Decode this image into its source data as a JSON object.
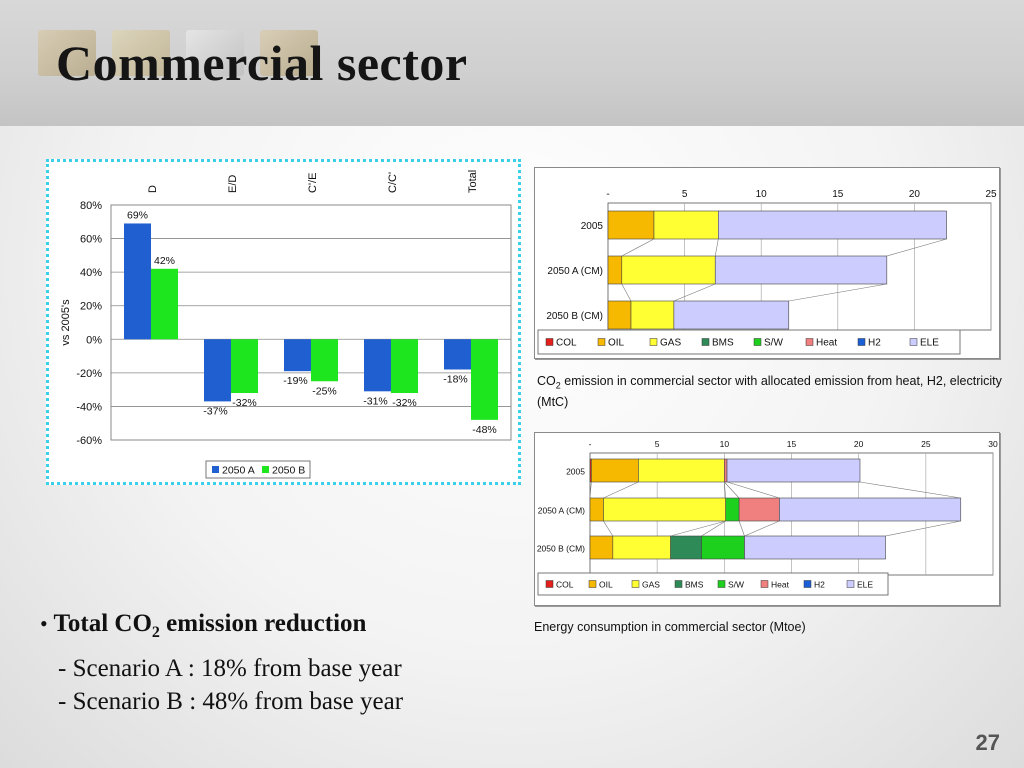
{
  "slide": {
    "title": "Commercial sector",
    "bullet_prefix": "Total CO",
    "bullet_sub": "2",
    "bullet_suffix": " emission reduction",
    "lines": [
      "- Scenario A : 18% from base year",
      "- Scenario B : 48% from base year"
    ],
    "page_number": "27",
    "caption1_prefix": "CO",
    "caption1_sub": "2",
    "caption1_suffix": " emission in commercial sector with allocated emission from heat, H2, electricity (MtC)",
    "caption2": "Energy consumption in commercial sector (Mtoe)"
  },
  "chart_data": [
    {
      "type": "bar",
      "categories": [
        "D",
        "E/D",
        "C'/E",
        "C/C'",
        "Total"
      ],
      "series": [
        {
          "name": "2050 A",
          "values": [
            69,
            -37,
            -19,
            -31,
            -18
          ],
          "labels": [
            "69%",
            "-37%",
            "-19%",
            "-31%",
            "-18%"
          ],
          "color": "#1f5fd0"
        },
        {
          "name": "2050 B",
          "values": [
            42,
            -32,
            -25,
            -32,
            -48
          ],
          "labels": [
            "42%",
            "-32%",
            "-25%",
            "-32%",
            "-48%"
          ],
          "color": "#1ee61e"
        }
      ],
      "ylabel": "vs 2005's",
      "ylim": [
        -60,
        80
      ],
      "yticks": [
        80,
        60,
        40,
        20,
        0,
        -20,
        -40,
        -60
      ],
      "ytick_labels": [
        "80%",
        "60%",
        "40%",
        "20%",
        "0%",
        "-20%",
        "-40%",
        "-60%"
      ],
      "grid": true,
      "legend": "bottom"
    },
    {
      "type": "bar",
      "orientation": "horizontal-stacked",
      "categories": [
        "2005",
        "2050 A (CM)",
        "2050 B (CM)"
      ],
      "series": [
        {
          "name": "COL",
          "values": [
            0,
            0,
            0
          ],
          "color": "#e3201b"
        },
        {
          "name": "OIL",
          "values": [
            3.0,
            0.9,
            1.5
          ],
          "color": "#f7b800"
        },
        {
          "name": "GAS",
          "values": [
            4.2,
            6.1,
            2.8
          ],
          "color": "#ffff33"
        },
        {
          "name": "BMS",
          "values": [
            0,
            0,
            0
          ],
          "color": "#2e8b57"
        },
        {
          "name": "S/W",
          "values": [
            0,
            0,
            0
          ],
          "color": "#1ed01e"
        },
        {
          "name": "Heat",
          "values": [
            0,
            0,
            0
          ],
          "color": "#f08080"
        },
        {
          "name": "H2",
          "values": [
            0,
            0,
            0
          ],
          "color": "#1a5fd6"
        },
        {
          "name": "ELE",
          "values": [
            14.9,
            11.2,
            7.5
          ],
          "color": "#ccccff"
        }
      ],
      "xlim": [
        0,
        25
      ],
      "xticks": [
        0,
        5,
        10,
        15,
        20,
        25
      ],
      "xtick_labels": [
        "-",
        "5",
        "10",
        "15",
        "20",
        "25"
      ],
      "legend": "bottom"
    },
    {
      "type": "bar",
      "orientation": "horizontal-stacked",
      "categories": [
        "2005",
        "2050 A (CM)",
        "2050 B (CM)"
      ],
      "series": [
        {
          "name": "COL",
          "values": [
            0.1,
            0,
            0
          ],
          "color": "#e3201b"
        },
        {
          "name": "OIL",
          "values": [
            3.5,
            1.0,
            1.7
          ],
          "color": "#f7b800"
        },
        {
          "name": "GAS",
          "values": [
            6.4,
            9.1,
            4.3
          ],
          "color": "#ffff33"
        },
        {
          "name": "BMS",
          "values": [
            0,
            0,
            2.3
          ],
          "color": "#2e8b57"
        },
        {
          "name": "S/W",
          "values": [
            0,
            1.0,
            3.2
          ],
          "color": "#1ed01e"
        },
        {
          "name": "Heat",
          "values": [
            0.2,
            3.0,
            0
          ],
          "color": "#f08080"
        },
        {
          "name": "H2",
          "values": [
            0,
            0,
            0
          ],
          "color": "#1a5fd6"
        },
        {
          "name": "ELE",
          "values": [
            9.9,
            13.5,
            10.5
          ],
          "color": "#ccccff"
        }
      ],
      "xlim": [
        0,
        30
      ],
      "xticks": [
        0,
        5,
        10,
        15,
        20,
        25,
        30
      ],
      "xtick_labels": [
        "-",
        "5",
        "10",
        "15",
        "20",
        "25",
        "30"
      ],
      "legend": "bottom"
    }
  ]
}
